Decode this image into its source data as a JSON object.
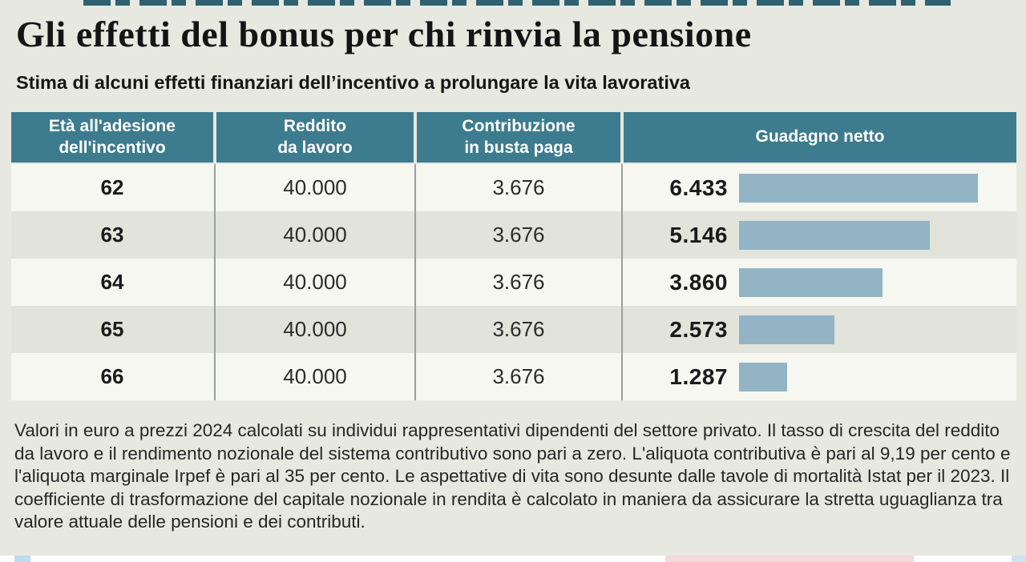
{
  "page": {
    "title": "Gli effetti del bonus per chi rinvia la pensione",
    "subtitle": "Stima di alcuni effetti finanziari dell’incentivo a prolungare la vita lavorativa",
    "footnote": "Valori in euro a prezzi 2024 calcolati su individui rappresentativi dipendenti del settore privato. Il tasso di crescita del reddito da lavoro e il rendimento nozionale del sistema contributivo sono pari a zero. L'aliquota contributiva è pari al 9,19 per cento e l'aliquota marginale Irpef è pari al 35 per cento. Le aspettative di vita sono desunte dalle tavole di mortalità Istat per il 2023. Il coefficiente di trasformazione del capitale nozionale in rendita è calcolato in maniera da assicurare la stretta uguaglianza tra valore attuale delle pensioni e dei contributi."
  },
  "colors": {
    "header_teal": "#3d7b8e",
    "bar_blue": "#92b4c5",
    "row_light": "#f6f7f1",
    "row_dark": "#e2e3db",
    "background": "#e7e8e0",
    "top_band_teal": "#2e6172"
  },
  "chart_data": {
    "type": "table",
    "title": "Gli effetti del bonus per chi rinvia la pensione",
    "subtitle": "Stima di alcuni effetti finanziari dell’incentivo a prolungare la vita lavorativa",
    "columns": [
      "Età all'adesione\ndell'incentivo",
      "Reddito\nda lavoro",
      "Contribuzione\nin busta paga",
      "Guadagno netto"
    ],
    "rows": [
      {
        "eta": "62",
        "reddito": "40.000",
        "contribuzione": "3.676",
        "guadagno": "6.433",
        "guadagno_value": 6433
      },
      {
        "eta": "63",
        "reddito": "40.000",
        "contribuzione": "3.676",
        "guadagno": "5.146",
        "guadagno_value": 5146
      },
      {
        "eta": "64",
        "reddito": "40.000",
        "contribuzione": "3.676",
        "guadagno": "3.860",
        "guadagno_value": 3860
      },
      {
        "eta": "65",
        "reddito": "40.000",
        "contribuzione": "3.676",
        "guadagno": "2.573",
        "guadagno_value": 2573
      },
      {
        "eta": "66",
        "reddito": "40.000",
        "contribuzione": "3.676",
        "guadagno": "1.287",
        "guadagno_value": 1287
      }
    ],
    "bar_series_name": "Guadagno netto",
    "bar_max_value": 6433,
    "bar_axis_range": [
      0,
      6433
    ],
    "legend": "none",
    "grid": "off",
    "note": "Valori in euro a prezzi 2024"
  }
}
